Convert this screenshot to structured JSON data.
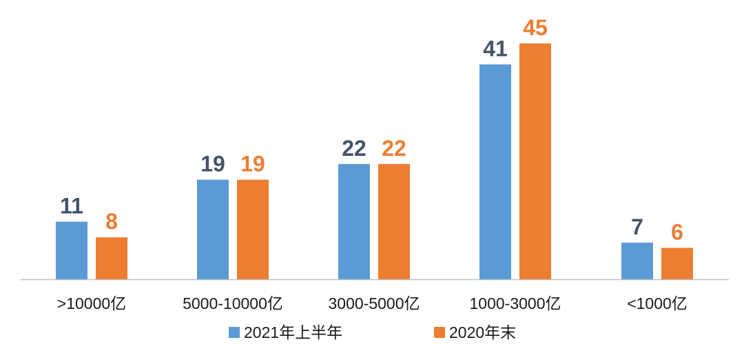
{
  "chart_data": {
    "type": "bar",
    "title": "",
    "xlabel": "",
    "ylabel": "",
    "categories": [
      ">10000亿",
      "5000-10000亿",
      "3000-5000亿",
      "1000-3000亿",
      "<1000亿"
    ],
    "series": [
      {
        "name": "2021年上半年",
        "values": [
          11,
          19,
          22,
          41,
          7
        ],
        "color": "#5b9bd5",
        "label_color": "#44546a"
      },
      {
        "name": "2020年末",
        "values": [
          8,
          19,
          22,
          45,
          6
        ],
        "color": "#ed7d31",
        "label_color": "#ed7d31"
      }
    ],
    "ylim": [
      0,
      45
    ],
    "grid": false,
    "data_labels": true,
    "legend_position": "bottom",
    "axis_line_color": "#bfbfbf"
  }
}
